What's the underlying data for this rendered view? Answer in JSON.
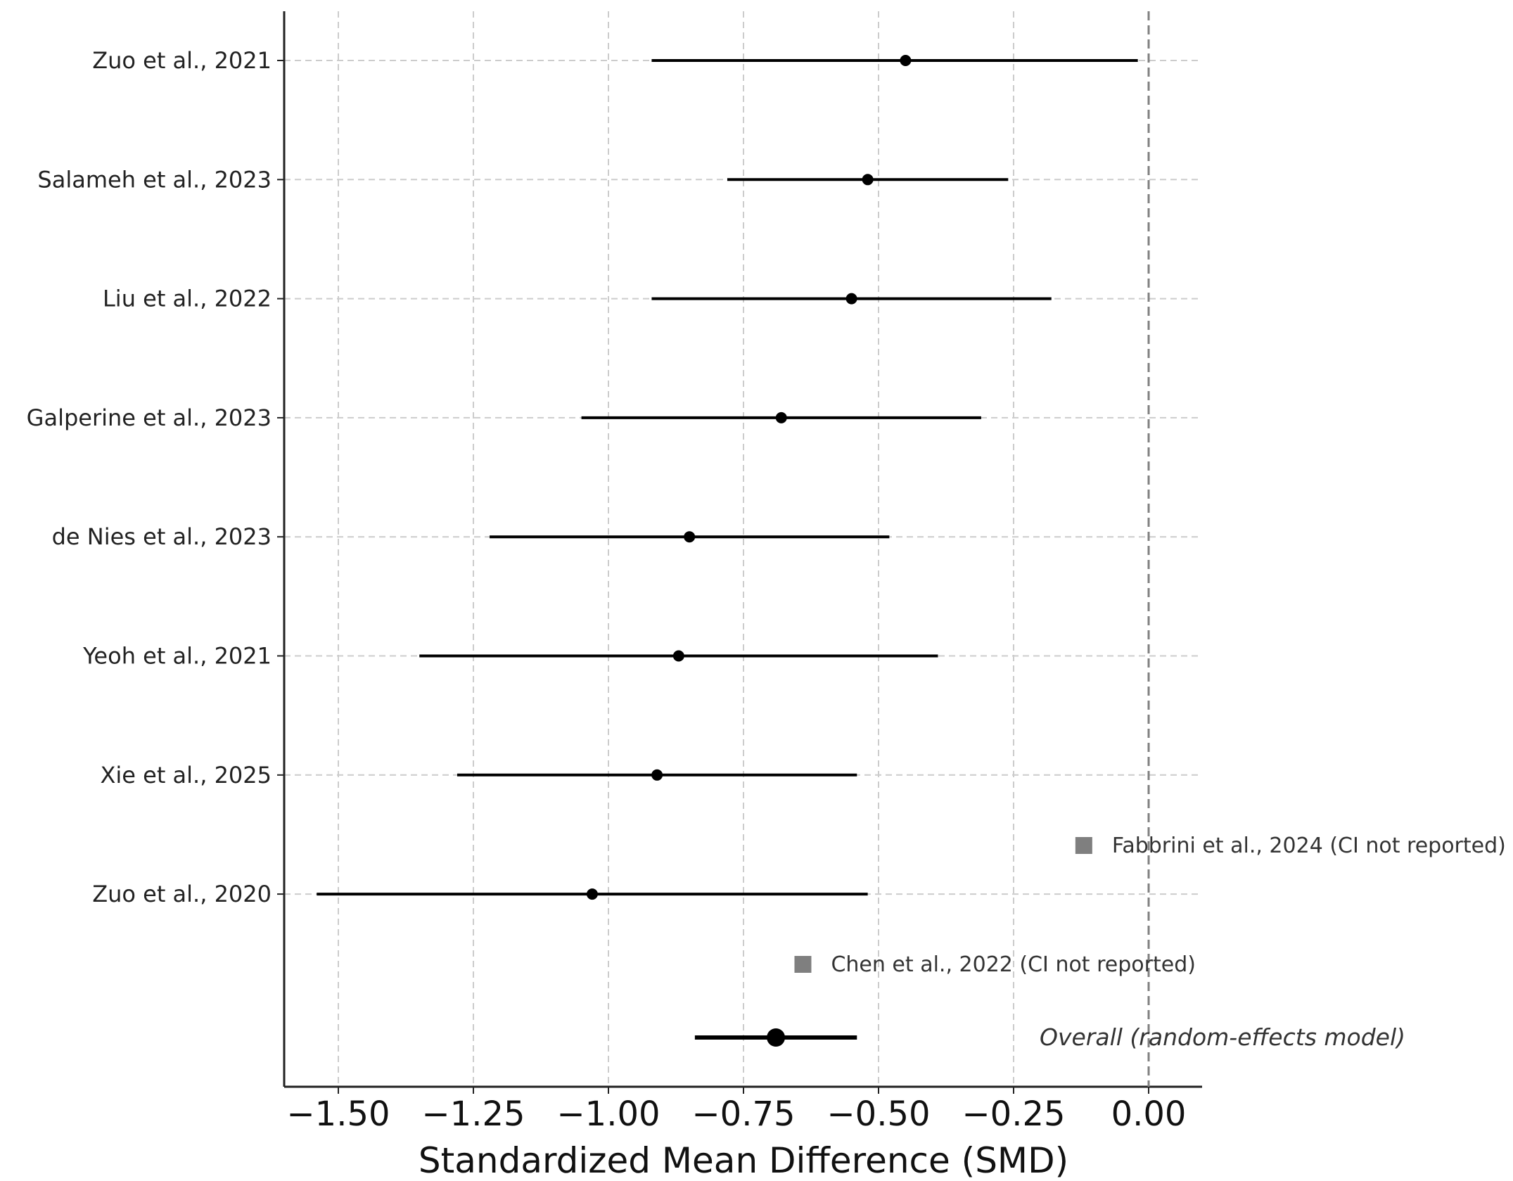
{
  "chart_data": {
    "type": "forest",
    "xlabel": "Standardized Mean Difference (SMD)",
    "xlim": [
      -1.61,
      0.1
    ],
    "x_ticks": [
      -1.5,
      -1.25,
      -1.0,
      -0.75,
      -0.5,
      -0.25,
      0.0
    ],
    "x_tick_labels": [
      "−1.50",
      "−1.25",
      "−1.00",
      "−0.75",
      "−0.50",
      "−0.25",
      "0.00"
    ],
    "grid": true,
    "reference_line": 0.0,
    "studies": [
      {
        "label": "Zuo et al., 2021",
        "smd": -0.45,
        "ci_low": -0.92,
        "ci_high": -0.02
      },
      {
        "label": "Salameh et al., 2023",
        "smd": -0.52,
        "ci_low": -0.78,
        "ci_high": -0.26
      },
      {
        "label": "Liu et al., 2022",
        "smd": -0.55,
        "ci_low": -0.92,
        "ci_high": -0.18
      },
      {
        "label": "Galperine et al., 2023",
        "smd": -0.68,
        "ci_low": -1.05,
        "ci_high": -0.31
      },
      {
        "label": "de Nies et al., 2023",
        "smd": -0.85,
        "ci_low": -1.22,
        "ci_high": -0.48
      },
      {
        "label": "Yeoh et al., 2021",
        "smd": -0.87,
        "ci_low": -1.35,
        "ci_high": -0.39
      },
      {
        "label": "Xie et al., 2025",
        "smd": -0.91,
        "ci_low": -1.28,
        "ci_high": -0.54
      },
      {
        "label": "Zuo et al., 2020",
        "smd": -1.03,
        "ci_low": -1.54,
        "ci_high": -0.52
      }
    ],
    "no_ci_studies": [
      {
        "label": "Fabbrini et al., 2024 (CI not reported)",
        "smd": -0.12
      },
      {
        "label": "Chen et al., 2022 (CI not reported)",
        "smd": -0.64
      }
    ],
    "overall": {
      "label": "Overall (random-effects model)",
      "smd": -0.69,
      "ci_low": -0.84,
      "ci_high": -0.54
    },
    "colors": {
      "estimate": "#000000",
      "no_ci_marker": "#7f7f7f",
      "grid": "#cccccc",
      "reference_line": "#808080",
      "axis": "#222222"
    }
  }
}
